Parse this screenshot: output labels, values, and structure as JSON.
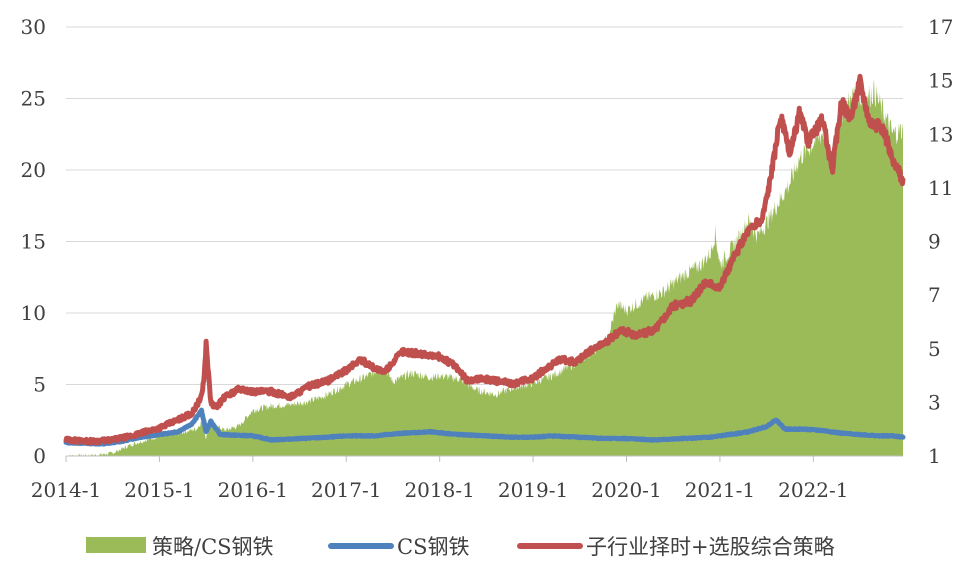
{
  "chart_data": {
    "type": "area+line",
    "title": "",
    "xlabel": "",
    "ylabel_left": "",
    "ylabel_right": "",
    "x_ticks": [
      "2014-1",
      "2015-1",
      "2016-1",
      "2017-1",
      "2018-1",
      "2019-1",
      "2020-1",
      "2021-1",
      "2022-1"
    ],
    "y_left": {
      "ticks": [
        "0",
        "5",
        "10",
        "15",
        "20",
        "25",
        "30"
      ],
      "ylim": [
        0,
        30
      ]
    },
    "y_right": {
      "ticks": [
        "1",
        "3",
        "5",
        "7",
        "9",
        "11",
        "13",
        "15",
        "17"
      ],
      "ylim": [
        1,
        17
      ]
    },
    "grid": true,
    "legend_position": "bottom",
    "x_range": [
      2014.0,
      2022.96
    ],
    "series": [
      {
        "name": "策略/CS钢铁",
        "type": "area",
        "axis": "left",
        "color": "#9bbb59",
        "points": [
          [
            2014.0,
            0.0
          ],
          [
            2014.3,
            0.05
          ],
          [
            2014.5,
            0.2
          ],
          [
            2014.7,
            0.8
          ],
          [
            2014.9,
            1.2
          ],
          [
            2015.0,
            1.4
          ],
          [
            2015.2,
            1.6
          ],
          [
            2015.4,
            1.9
          ],
          [
            2015.45,
            2.4
          ],
          [
            2015.5,
            1.3
          ],
          [
            2015.55,
            2.3
          ],
          [
            2015.7,
            1.8
          ],
          [
            2015.85,
            2.1
          ],
          [
            2016.0,
            3.2
          ],
          [
            2016.2,
            3.5
          ],
          [
            2016.4,
            3.6
          ],
          [
            2016.6,
            3.8
          ],
          [
            2016.8,
            4.3
          ],
          [
            2017.0,
            5.0
          ],
          [
            2017.2,
            5.5
          ],
          [
            2017.4,
            6.2
          ],
          [
            2017.5,
            5.2
          ],
          [
            2017.7,
            5.8
          ],
          [
            2017.9,
            5.5
          ],
          [
            2018.0,
            5.6
          ],
          [
            2018.2,
            5.4
          ],
          [
            2018.4,
            4.6
          ],
          [
            2018.6,
            4.3
          ],
          [
            2018.8,
            4.8
          ],
          [
            2019.0,
            5.1
          ],
          [
            2019.2,
            5.6
          ],
          [
            2019.4,
            6.3
          ],
          [
            2019.6,
            7.1
          ],
          [
            2019.8,
            8.2
          ],
          [
            2019.9,
            10.6
          ],
          [
            2020.0,
            10.2
          ],
          [
            2020.2,
            11.0
          ],
          [
            2020.4,
            11.5
          ],
          [
            2020.6,
            12.6
          ],
          [
            2020.8,
            13.4
          ],
          [
            2020.9,
            14.2
          ],
          [
            2020.95,
            15.6
          ],
          [
            2021.0,
            13.4
          ],
          [
            2021.2,
            15.2
          ],
          [
            2021.3,
            16.5
          ],
          [
            2021.4,
            15.4
          ],
          [
            2021.5,
            16.3
          ],
          [
            2021.65,
            18.0
          ],
          [
            2021.75,
            19.1
          ],
          [
            2021.85,
            20.8
          ],
          [
            2022.0,
            21.9
          ],
          [
            2022.1,
            22.6
          ],
          [
            2022.2,
            20.5
          ],
          [
            2022.3,
            24.0
          ],
          [
            2022.45,
            25.4
          ],
          [
            2022.55,
            24.9
          ],
          [
            2022.65,
            25.5
          ],
          [
            2022.75,
            24.0
          ],
          [
            2022.85,
            22.5
          ],
          [
            2022.96,
            22.8
          ]
        ]
      },
      {
        "name": "CS钢铁",
        "type": "line",
        "axis": "right",
        "color": "#4f81bd",
        "points": [
          [
            2014.0,
            1.5
          ],
          [
            2014.4,
            1.45
          ],
          [
            2014.6,
            1.55
          ],
          [
            2014.8,
            1.7
          ],
          [
            2015.0,
            1.8
          ],
          [
            2015.2,
            1.9
          ],
          [
            2015.35,
            2.2
          ],
          [
            2015.45,
            2.7
          ],
          [
            2015.5,
            1.9
          ],
          [
            2015.55,
            2.3
          ],
          [
            2015.65,
            1.8
          ],
          [
            2016.0,
            1.75
          ],
          [
            2016.2,
            1.6
          ],
          [
            2016.5,
            1.65
          ],
          [
            2016.8,
            1.7
          ],
          [
            2017.0,
            1.75
          ],
          [
            2017.3,
            1.75
          ],
          [
            2017.6,
            1.85
          ],
          [
            2017.9,
            1.9
          ],
          [
            2018.2,
            1.8
          ],
          [
            2018.5,
            1.75
          ],
          [
            2018.8,
            1.7
          ],
          [
            2019.0,
            1.7
          ],
          [
            2019.2,
            1.75
          ],
          [
            2019.5,
            1.7
          ],
          [
            2019.8,
            1.65
          ],
          [
            2020.0,
            1.65
          ],
          [
            2020.3,
            1.6
          ],
          [
            2020.6,
            1.65
          ],
          [
            2020.9,
            1.7
          ],
          [
            2021.1,
            1.8
          ],
          [
            2021.3,
            1.9
          ],
          [
            2021.5,
            2.1
          ],
          [
            2021.6,
            2.35
          ],
          [
            2021.7,
            2.0
          ],
          [
            2021.9,
            2.0
          ],
          [
            2022.1,
            1.95
          ],
          [
            2022.3,
            1.85
          ],
          [
            2022.5,
            1.8
          ],
          [
            2022.7,
            1.75
          ],
          [
            2022.85,
            1.75
          ],
          [
            2022.96,
            1.7
          ]
        ]
      },
      {
        "name": "子行业择时+选股综合策略",
        "type": "line",
        "axis": "right",
        "color": "#c0504d",
        "points": [
          [
            2014.0,
            1.6
          ],
          [
            2014.3,
            1.55
          ],
          [
            2014.5,
            1.6
          ],
          [
            2014.7,
            1.75
          ],
          [
            2014.9,
            1.95
          ],
          [
            2015.0,
            2.05
          ],
          [
            2015.2,
            2.35
          ],
          [
            2015.35,
            2.6
          ],
          [
            2015.45,
            3.2
          ],
          [
            2015.48,
            4.0
          ],
          [
            2015.5,
            5.2
          ],
          [
            2015.55,
            3.0
          ],
          [
            2015.6,
            2.8
          ],
          [
            2015.7,
            3.2
          ],
          [
            2015.85,
            3.5
          ],
          [
            2016.0,
            3.4
          ],
          [
            2016.2,
            3.4
          ],
          [
            2016.4,
            3.2
          ],
          [
            2016.6,
            3.6
          ],
          [
            2016.8,
            3.8
          ],
          [
            2017.0,
            4.2
          ],
          [
            2017.15,
            4.6
          ],
          [
            2017.25,
            4.4
          ],
          [
            2017.4,
            4.1
          ],
          [
            2017.6,
            4.9
          ],
          [
            2017.8,
            4.8
          ],
          [
            2018.0,
            4.7
          ],
          [
            2018.15,
            4.4
          ],
          [
            2018.3,
            3.8
          ],
          [
            2018.45,
            3.9
          ],
          [
            2018.6,
            3.8
          ],
          [
            2018.8,
            3.7
          ],
          [
            2019.0,
            3.9
          ],
          [
            2019.15,
            4.3
          ],
          [
            2019.3,
            4.6
          ],
          [
            2019.45,
            4.5
          ],
          [
            2019.6,
            4.9
          ],
          [
            2019.8,
            5.3
          ],
          [
            2019.95,
            5.7
          ],
          [
            2020.1,
            5.5
          ],
          [
            2020.3,
            5.7
          ],
          [
            2020.5,
            6.6
          ],
          [
            2020.7,
            6.8
          ],
          [
            2020.85,
            7.5
          ],
          [
            2021.0,
            7.3
          ],
          [
            2021.15,
            8.4
          ],
          [
            2021.3,
            9.4
          ],
          [
            2021.45,
            9.8
          ],
          [
            2021.55,
            11.5
          ],
          [
            2021.65,
            13.7
          ],
          [
            2021.75,
            12.2
          ],
          [
            2021.85,
            13.8
          ],
          [
            2021.95,
            12.7
          ],
          [
            2022.1,
            13.6
          ],
          [
            2022.2,
            11.6
          ],
          [
            2022.3,
            14.2
          ],
          [
            2022.4,
            13.6
          ],
          [
            2022.5,
            15.0
          ],
          [
            2022.6,
            13.5
          ],
          [
            2022.75,
            13.2
          ],
          [
            2022.85,
            12.0
          ],
          [
            2022.96,
            11.3
          ]
        ]
      }
    ]
  }
}
